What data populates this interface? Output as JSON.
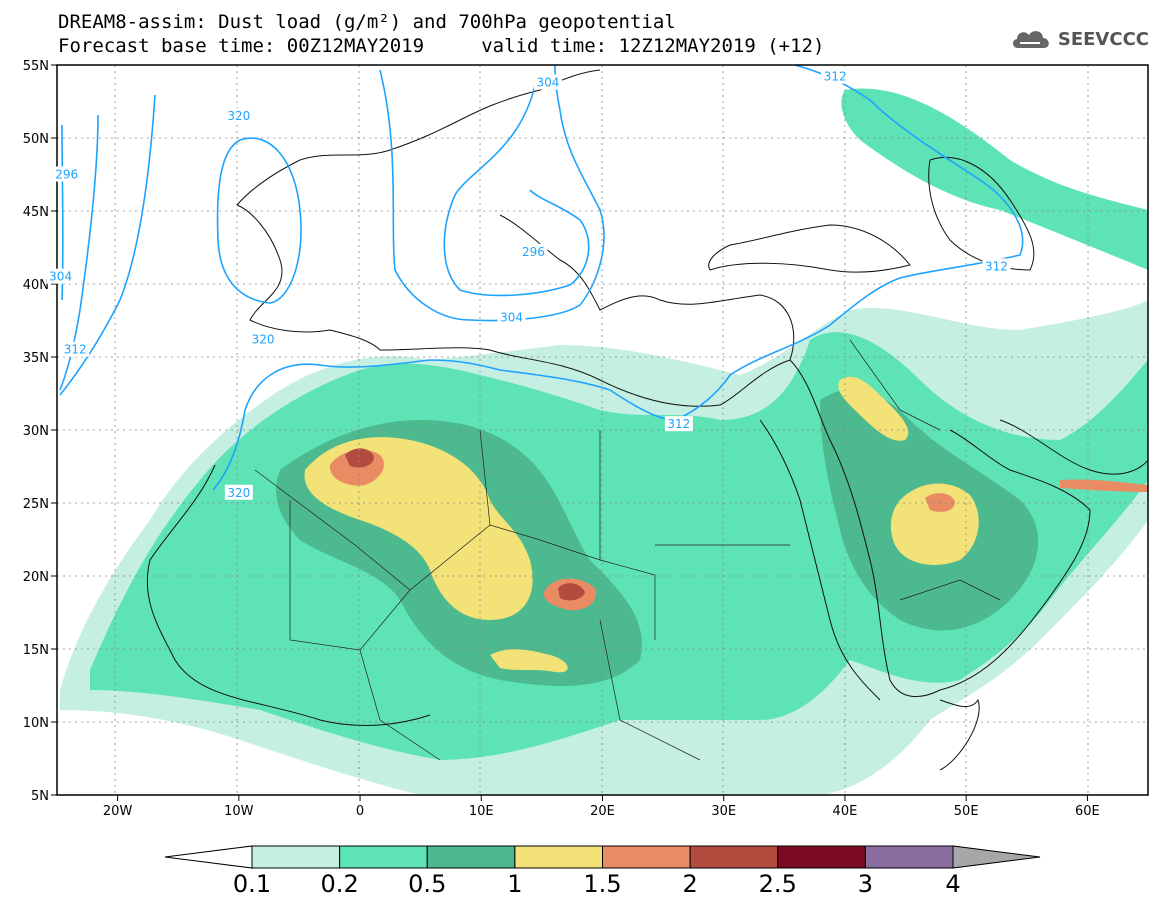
{
  "header": {
    "line1": "DREAM8-assim: Dust load (g/m²) and 700hPa geopotential",
    "line2": "Forecast base time: 00Z12MAY2019     valid time: 12Z12MAY2019 (+12)"
  },
  "logo": {
    "text": "SEEVCCC",
    "icon": "cloud-icon"
  },
  "map": {
    "lon_range": [
      -25,
      65
    ],
    "lat_range": [
      5,
      55
    ],
    "lat_ticks": [
      {
        "value": 55,
        "label": "55N"
      },
      {
        "value": 50,
        "label": "50N"
      },
      {
        "value": 45,
        "label": "45N"
      },
      {
        "value": 40,
        "label": "40N"
      },
      {
        "value": 35,
        "label": "35N"
      },
      {
        "value": 30,
        "label": "30N"
      },
      {
        "value": 25,
        "label": "25N"
      },
      {
        "value": 20,
        "label": "20N"
      },
      {
        "value": 15,
        "label": "15N"
      },
      {
        "value": 10,
        "label": "10N"
      },
      {
        "value": 5,
        "label": "5N"
      }
    ],
    "lon_ticks": [
      {
        "value": -20,
        "label": "20W"
      },
      {
        "value": -10,
        "label": "10W"
      },
      {
        "value": 0,
        "label": "0"
      },
      {
        "value": 10,
        "label": "10E"
      },
      {
        "value": 20,
        "label": "20E"
      },
      {
        "value": 30,
        "label": "30E"
      },
      {
        "value": 40,
        "label": "40E"
      },
      {
        "value": 50,
        "label": "50E"
      },
      {
        "value": 60,
        "label": "60E"
      }
    ],
    "contour_labels": [
      {
        "text": "320",
        "lon": -10,
        "lat": 51.5
      },
      {
        "text": "296",
        "lon": -24.2,
        "lat": 47.5
      },
      {
        "text": "304",
        "lon": -24.7,
        "lat": 40.5
      },
      {
        "text": "312",
        "lon": -23.5,
        "lat": 35.5
      },
      {
        "text": "304",
        "lon": 15.5,
        "lat": 53.8
      },
      {
        "text": "296",
        "lon": 14.3,
        "lat": 42.2
      },
      {
        "text": "304",
        "lon": 12.5,
        "lat": 37.7
      },
      {
        "text": "320",
        "lon": -8,
        "lat": 36.2
      },
      {
        "text": "320",
        "lon": -10,
        "lat": 25.7
      },
      {
        "text": "312",
        "lon": 26.3,
        "lat": 30.4
      },
      {
        "text": "312",
        "lon": 39.2,
        "lat": 54.2
      },
      {
        "text": "312",
        "lon": 52.5,
        "lat": 41.2
      }
    ]
  },
  "colorbar": {
    "levels": [
      "0.1",
      "0.2",
      "0.5",
      "1",
      "1.5",
      "2",
      "2.5",
      "3",
      "4"
    ],
    "colors": [
      "#c5efe3",
      "#5ee3b7",
      "#4cb98f",
      "#f2e277",
      "#e98b63",
      "#b44b3f",
      "#7b0b23",
      "#8b6ea0"
    ],
    "under_color": "#ffffff",
    "over_color": "#a7a7a7"
  }
}
